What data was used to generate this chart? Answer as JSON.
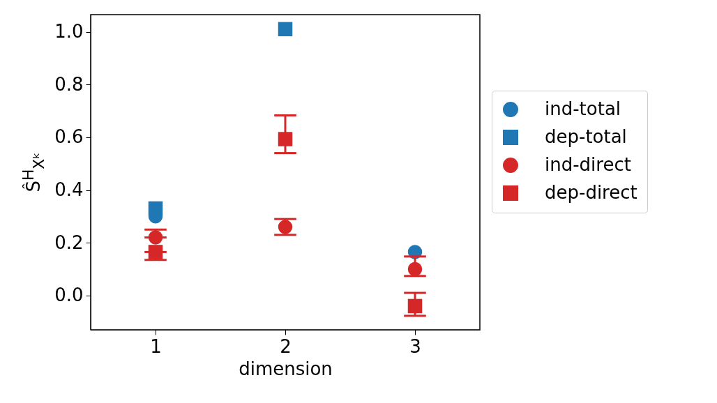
{
  "chart_data": {
    "type": "scatter",
    "xlabel": "dimension",
    "ylabel": "Ŝ$^{H}$$_{Xᵏ}$",
    "categories": [
      "1",
      "2",
      "3"
    ],
    "ylim": [
      -0.13,
      1.065
    ],
    "yticks": [
      {
        "value": 0,
        "label": "0.0"
      },
      0.2,
      0.4,
      0.6,
      0.8,
      {
        "value": 1,
        "label": "1.0"
      }
    ],
    "grid": false,
    "legend": "right",
    "series": [
      {
        "name": "ind-total",
        "color": "#1f77b4",
        "marker": "circle",
        "values": [
          0.3,
          null,
          0.165
        ]
      },
      {
        "name": "dep-total",
        "color": "#1f77b4",
        "marker": "square",
        "values": [
          0.33,
          1.01,
          null
        ]
      },
      {
        "name": "ind-direct",
        "color": "#d62728",
        "marker": "circle",
        "values": [
          0.22,
          0.26,
          0.1
        ],
        "errors": [
          [
            0.22,
            0.25
          ],
          [
            0.23,
            0.29
          ],
          [
            0.074,
            0.148
          ]
        ]
      },
      {
        "name": "dep-direct",
        "color": "#d62728",
        "marker": "square",
        "values": [
          0.165,
          0.593,
          -0.04
        ],
        "errors": [
          [
            0.135,
            0.165
          ],
          [
            0.54,
            0.683
          ],
          [
            -0.077,
            0.01
          ]
        ]
      }
    ]
  }
}
